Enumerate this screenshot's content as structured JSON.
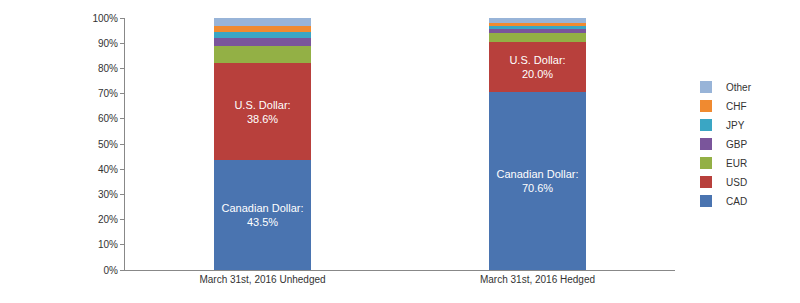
{
  "chart_data": {
    "type": "bar",
    "stacked": true,
    "categories": [
      "March 31st, 2016 Unhedged",
      "March 31st, 2016 Hedged"
    ],
    "series": [
      {
        "name": "CAD",
        "color": "#4a74b0",
        "values": [
          43.5,
          70.6
        ],
        "value_labels": [
          "Canadian Dollar: 43.5%",
          "Canadian Dollar: 70.6%"
        ]
      },
      {
        "name": "USD",
        "color": "#b8403c",
        "values": [
          38.6,
          20.0
        ],
        "value_labels": [
          "U.S. Dollar: 38.6%",
          "U.S. Dollar: 20.0%"
        ]
      },
      {
        "name": "EUR",
        "color": "#93b045",
        "values": [
          6.9,
          3.4
        ]
      },
      {
        "name": "GBP",
        "color": "#7a559b",
        "values": [
          3.0,
          1.8
        ]
      },
      {
        "name": "JPY",
        "color": "#3aa6c4",
        "values": [
          2.5,
          1.0
        ]
      },
      {
        "name": "CHF",
        "color": "#f08a30",
        "values": [
          2.5,
          1.2
        ]
      },
      {
        "name": "Other",
        "color": "#98b4d8",
        "values": [
          3.0,
          2.0
        ]
      }
    ],
    "ylim": [
      0,
      100
    ],
    "yticks": [
      {
        "value": 0,
        "label": "0%"
      },
      {
        "value": 10,
        "label": "10%"
      },
      {
        "value": 20,
        "label": "20%"
      },
      {
        "value": 30,
        "label": "30%"
      },
      {
        "value": 40,
        "label": "40%"
      },
      {
        "value": 50,
        "label": "50%"
      },
      {
        "value": 60,
        "label": "60%"
      },
      {
        "value": 70,
        "label": "70%"
      },
      {
        "value": 80,
        "label": "80%"
      },
      {
        "value": 90,
        "label": "90%"
      },
      {
        "value": 100,
        "label": "100%"
      }
    ],
    "grid": false,
    "legend": "right"
  }
}
